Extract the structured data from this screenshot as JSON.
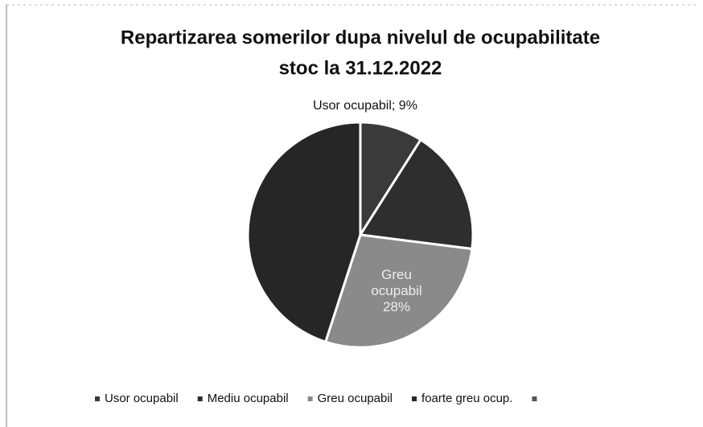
{
  "chart_data": {
    "type": "pie",
    "title": [
      "Repartizarea somerilor dupa nivelul de ocupabilitate",
      "stoc la 31.12.2022"
    ],
    "categories": [
      "Usor ocupabil",
      "Mediu ocupabil",
      "Greu ocupabil",
      "foarte greu ocup.",
      null
    ],
    "values": [
      9,
      18,
      28,
      45,
      0
    ],
    "value_labels": [
      "Usor ocupabil; 9%",
      null,
      "Greu ocupabil 28%",
      null,
      null
    ],
    "colors": [
      "#3a3a3a",
      "#2e2e2e",
      "#8a8a8a",
      "#262626",
      "#555555"
    ],
    "legend": "bottom"
  }
}
